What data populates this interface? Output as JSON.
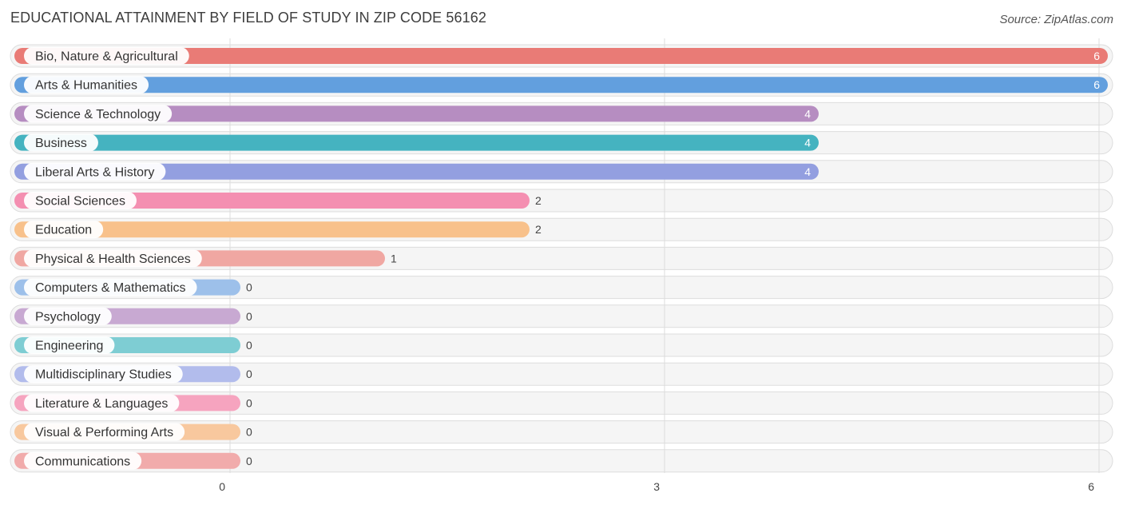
{
  "header": {
    "title": "EDUCATIONAL ATTAINMENT BY FIELD OF STUDY IN ZIP CODE 56162",
    "source": "Source: ZipAtlas.com"
  },
  "chart_data": {
    "type": "bar",
    "orientation": "horizontal",
    "title": "EDUCATIONAL ATTAINMENT BY FIELD OF STUDY IN ZIP CODE 56162",
    "xlabel": "",
    "ylabel": "",
    "xlim": [
      0,
      6
    ],
    "x_ticks": [
      "0",
      "3",
      "6"
    ],
    "grid": true,
    "categories": [
      "Bio, Nature & Agricultural",
      "Arts & Humanities",
      "Science & Technology",
      "Business",
      "Liberal Arts & History",
      "Social Sciences",
      "Education",
      "Physical & Health Sciences",
      "Computers & Mathematics",
      "Psychology",
      "Engineering",
      "Multidisciplinary Studies",
      "Literature & Languages",
      "Visual & Performing Arts",
      "Communications"
    ],
    "values": [
      6,
      6,
      4,
      4,
      4,
      2,
      2,
      1,
      0,
      0,
      0,
      0,
      0,
      0,
      0
    ],
    "value_labels": [
      "6",
      "6",
      "4",
      "4",
      "4",
      "2",
      "2",
      "1",
      "0",
      "0",
      "0",
      "0",
      "0",
      "0",
      "0"
    ],
    "colors": [
      "#e97b76",
      "#629fde",
      "#b68dc1",
      "#45b3c0",
      "#939fe0",
      "#f48fb1",
      "#f8c18b",
      "#f0a7a2",
      "#9dc0ea",
      "#c8a9d2",
      "#7ecdd3",
      "#b2bcec",
      "#f6a4bf",
      "#f8c89e",
      "#f1abab"
    ]
  }
}
